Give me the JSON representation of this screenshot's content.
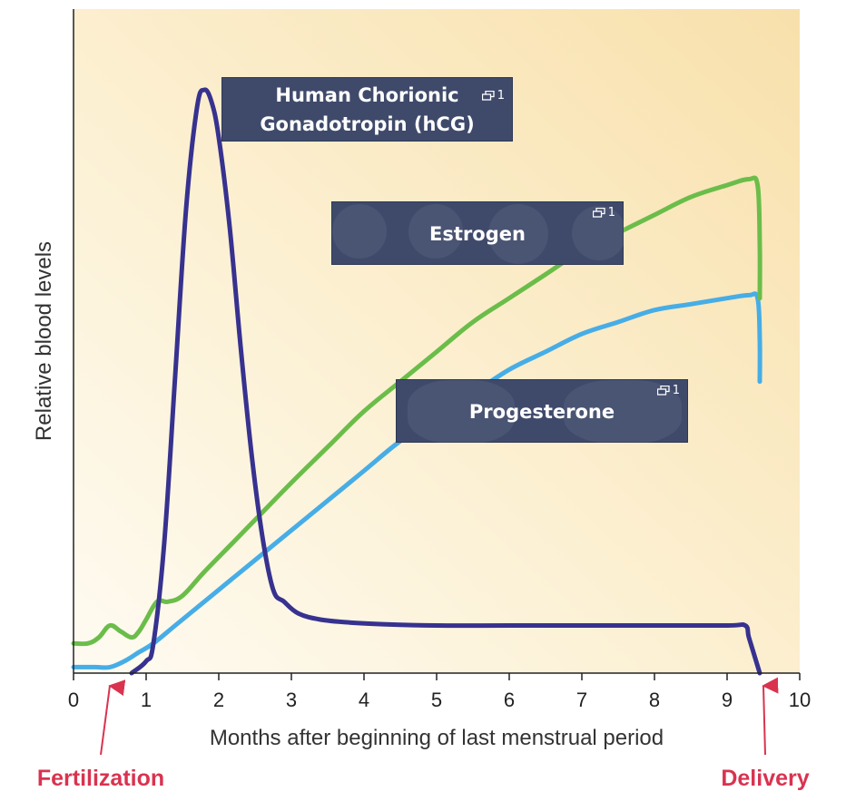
{
  "chart_data": {
    "type": "line",
    "title": "",
    "xlabel": "Months after beginning of last menstrual period",
    "ylabel": "Relative blood levels",
    "xlim": [
      0,
      10
    ],
    "xticks": [
      "0",
      "1",
      "2",
      "3",
      "4",
      "5",
      "6",
      "7",
      "8",
      "9",
      "10"
    ],
    "grid": false,
    "series": [
      {
        "name": "Human Chorionic Gonadotropin (hCG)",
        "color": "#37328f",
        "x": [
          0.8,
          1.0,
          1.1,
          1.25,
          1.4,
          1.55,
          1.7,
          1.8,
          1.9,
          2.0,
          2.15,
          2.3,
          2.45,
          2.6,
          2.75,
          2.9,
          3.1,
          3.4,
          3.8,
          4.3,
          5.0,
          6.0,
          7.0,
          8.0,
          9.0,
          9.25,
          9.3,
          9.4,
          9.45
        ],
        "y": [
          0.0,
          0.02,
          0.05,
          0.22,
          0.5,
          0.78,
          0.95,
          0.98,
          0.96,
          0.9,
          0.75,
          0.55,
          0.37,
          0.23,
          0.14,
          0.12,
          0.1,
          0.09,
          0.085,
          0.082,
          0.08,
          0.08,
          0.08,
          0.08,
          0.08,
          0.08,
          0.06,
          0.02,
          0.0
        ]
      },
      {
        "name": "Estrogen",
        "color": "#6bbd4a",
        "x": [
          0.0,
          0.2,
          0.35,
          0.5,
          0.65,
          0.8,
          0.9,
          1.0,
          1.15,
          1.3,
          1.5,
          1.8,
          2.2,
          2.6,
          3.0,
          3.5,
          4.0,
          4.5,
          5.0,
          5.5,
          6.0,
          6.5,
          7.0,
          7.5,
          8.0,
          8.5,
          9.0,
          9.3,
          9.42,
          9.45,
          9.45
        ],
        "y": [
          0.05,
          0.05,
          0.06,
          0.08,
          0.07,
          0.06,
          0.07,
          0.09,
          0.12,
          0.12,
          0.13,
          0.17,
          0.22,
          0.27,
          0.32,
          0.38,
          0.44,
          0.49,
          0.54,
          0.59,
          0.63,
          0.67,
          0.71,
          0.74,
          0.77,
          0.8,
          0.82,
          0.83,
          0.82,
          0.72,
          0.63
        ]
      },
      {
        "name": "Progesterone",
        "color": "#47ade6",
        "x": [
          0.0,
          0.3,
          0.5,
          0.7,
          0.9,
          1.1,
          1.4,
          1.8,
          2.2,
          2.6,
          3.0,
          3.5,
          4.0,
          4.5,
          5.0,
          5.5,
          6.0,
          6.5,
          7.0,
          7.5,
          8.0,
          8.5,
          9.0,
          9.3,
          9.42,
          9.45,
          9.45
        ],
        "y": [
          0.01,
          0.01,
          0.01,
          0.02,
          0.035,
          0.05,
          0.08,
          0.12,
          0.16,
          0.2,
          0.24,
          0.29,
          0.34,
          0.39,
          0.43,
          0.47,
          0.51,
          0.54,
          0.57,
          0.59,
          0.61,
          0.62,
          0.63,
          0.635,
          0.63,
          0.56,
          0.49
        ]
      }
    ],
    "annotations": [
      {
        "text": "Fertilization",
        "x": 0.5,
        "color": "#d9334f"
      },
      {
        "text": "Delivery",
        "x": 9.5,
        "color": "#d9334f"
      }
    ]
  },
  "labels": {
    "hcg_line1": "Human Chorionic",
    "hcg_line2": "Gonadotropin (hCG)",
    "estrogen": "Estrogen",
    "progesterone": "Progesterone",
    "ref_count": "1"
  },
  "colors": {
    "background_left": "#fdf7e6",
    "background_right": "#f9e2b0",
    "label_box": "#3f4a6b",
    "annotation": "#d9334f"
  }
}
